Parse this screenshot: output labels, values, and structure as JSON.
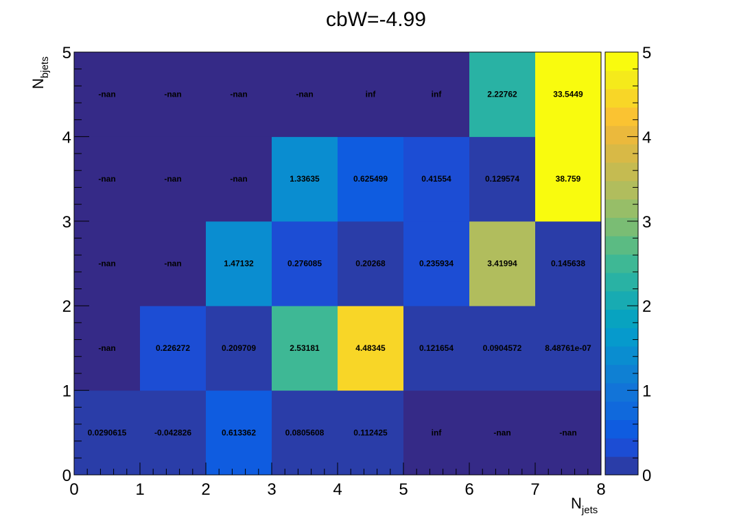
{
  "chart_data": {
    "type": "heatmap",
    "title": "cbW=-4.99",
    "xlabel": {
      "main": "N",
      "sub": "jets"
    },
    "ylabel": {
      "main": "N",
      "sub": "bjets"
    },
    "xlim": [
      0,
      8
    ],
    "ylim": [
      0,
      5
    ],
    "zlim": [
      0,
      5
    ],
    "x_ticks": [
      "0",
      "1",
      "2",
      "3",
      "4",
      "5",
      "6",
      "7",
      "8"
    ],
    "y_ticks": [
      "0",
      "1",
      "2",
      "3",
      "4",
      "5"
    ],
    "z_ticks": [
      "0",
      "1",
      "2",
      "3",
      "4",
      "5"
    ],
    "colormap": "parula",
    "cells": [
      {
        "x": 0,
        "y": 0,
        "value": 0.0290615,
        "label": "0.0290615"
      },
      {
        "x": 1,
        "y": 0,
        "value": -0.042826,
        "label": "-0.042826"
      },
      {
        "x": 2,
        "y": 0,
        "value": 0.613362,
        "label": "0.613362"
      },
      {
        "x": 3,
        "y": 0,
        "value": 0.0805608,
        "label": "0.0805608"
      },
      {
        "x": 4,
        "y": 0,
        "value": 0.112425,
        "label": "0.112425"
      },
      {
        "x": 5,
        "y": 0,
        "value": null,
        "label": "inf"
      },
      {
        "x": 6,
        "y": 0,
        "value": null,
        "label": "-nan"
      },
      {
        "x": 7,
        "y": 0,
        "value": null,
        "label": "-nan"
      },
      {
        "x": 0,
        "y": 1,
        "value": null,
        "label": "-nan"
      },
      {
        "x": 1,
        "y": 1,
        "value": 0.226272,
        "label": "0.226272"
      },
      {
        "x": 2,
        "y": 1,
        "value": 0.209709,
        "label": "0.209709"
      },
      {
        "x": 3,
        "y": 1,
        "value": 2.53181,
        "label": "2.53181"
      },
      {
        "x": 4,
        "y": 1,
        "value": 4.48345,
        "label": "4.48345"
      },
      {
        "x": 5,
        "y": 1,
        "value": 0.121654,
        "label": "0.121654"
      },
      {
        "x": 6,
        "y": 1,
        "value": 0.0904572,
        "label": "0.0904572"
      },
      {
        "x": 7,
        "y": 1,
        "value": 8.48761e-07,
        "label": "8.48761e-07"
      },
      {
        "x": 0,
        "y": 2,
        "value": null,
        "label": "-nan"
      },
      {
        "x": 1,
        "y": 2,
        "value": null,
        "label": "-nan"
      },
      {
        "x": 2,
        "y": 2,
        "value": 1.47132,
        "label": "1.47132"
      },
      {
        "x": 3,
        "y": 2,
        "value": 0.276085,
        "label": "0.276085"
      },
      {
        "x": 4,
        "y": 2,
        "value": 0.20268,
        "label": "0.20268"
      },
      {
        "x": 5,
        "y": 2,
        "value": 0.235934,
        "label": "0.235934"
      },
      {
        "x": 6,
        "y": 2,
        "value": 3.41994,
        "label": "3.41994"
      },
      {
        "x": 7,
        "y": 2,
        "value": 0.145638,
        "label": "0.145638"
      },
      {
        "x": 0,
        "y": 3,
        "value": null,
        "label": "-nan"
      },
      {
        "x": 1,
        "y": 3,
        "value": null,
        "label": "-nan"
      },
      {
        "x": 2,
        "y": 3,
        "value": null,
        "label": "-nan"
      },
      {
        "x": 3,
        "y": 3,
        "value": 1.33635,
        "label": "1.33635"
      },
      {
        "x": 4,
        "y": 3,
        "value": 0.625499,
        "label": "0.625499"
      },
      {
        "x": 5,
        "y": 3,
        "value": 0.41554,
        "label": "0.41554"
      },
      {
        "x": 6,
        "y": 3,
        "value": 0.129574,
        "label": "0.129574"
      },
      {
        "x": 7,
        "y": 3,
        "value": 38.759,
        "label": "38.759"
      },
      {
        "x": 0,
        "y": 4,
        "value": null,
        "label": "-nan"
      },
      {
        "x": 1,
        "y": 4,
        "value": null,
        "label": "-nan"
      },
      {
        "x": 2,
        "y": 4,
        "value": null,
        "label": "-nan"
      },
      {
        "x": 3,
        "y": 4,
        "value": null,
        "label": "-nan"
      },
      {
        "x": 4,
        "y": 4,
        "value": null,
        "label": "inf"
      },
      {
        "x": 5,
        "y": 4,
        "value": null,
        "label": "inf"
      },
      {
        "x": 6,
        "y": 4,
        "value": 2.22762,
        "label": "2.22762"
      },
      {
        "x": 7,
        "y": 4,
        "value": 33.5449,
        "label": "33.5449"
      }
    ],
    "colors": {
      "empty": "#352a87",
      "palette": [
        "#2a3da8",
        "#1c4dd4",
        "#0f5ce0",
        "#1069dc",
        "#1274d8",
        "#0f80d3",
        "#0a8dd0",
        "#069acc",
        "#08a3c0",
        "#18abb2",
        "#29b2a4",
        "#3eb895",
        "#5bbb83",
        "#7abd74",
        "#97be68",
        "#b1bd5d",
        "#c5bb51",
        "#d8b946",
        "#ebb93c",
        "#fac332",
        "#f8d627",
        "#f5ea1b",
        "#f9fb0e"
      ]
    },
    "grid": false,
    "legend": "color-bar-right"
  }
}
